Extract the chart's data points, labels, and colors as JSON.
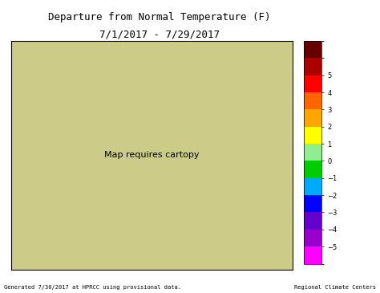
{
  "title_line1": "Departure from Normal Temperature (F)",
  "title_line2": "7/1/2017 - 7/29/2017",
  "footer_left": "Generated 7/30/2017 at HPRCC using provisional data.",
  "footer_right": "Regional Climate Centers",
  "colorbar_ticks": [
    5,
    4,
    3,
    2,
    1,
    0,
    -1,
    -2,
    -3,
    -4,
    -5
  ],
  "colorbar_colors": [
    "#8B0000",
    "#FF0000",
    "#FF6600",
    "#FFA500",
    "#FFFF00",
    "#90EE90",
    "#00AA00",
    "#00BFFF",
    "#0000FF",
    "#8B008B",
    "#FF00FF"
  ],
  "bg_color": "#FFFFFF",
  "map_bg": "#FFFFFF",
  "figsize": [
    4.74,
    3.65
  ],
  "dpi": 100
}
